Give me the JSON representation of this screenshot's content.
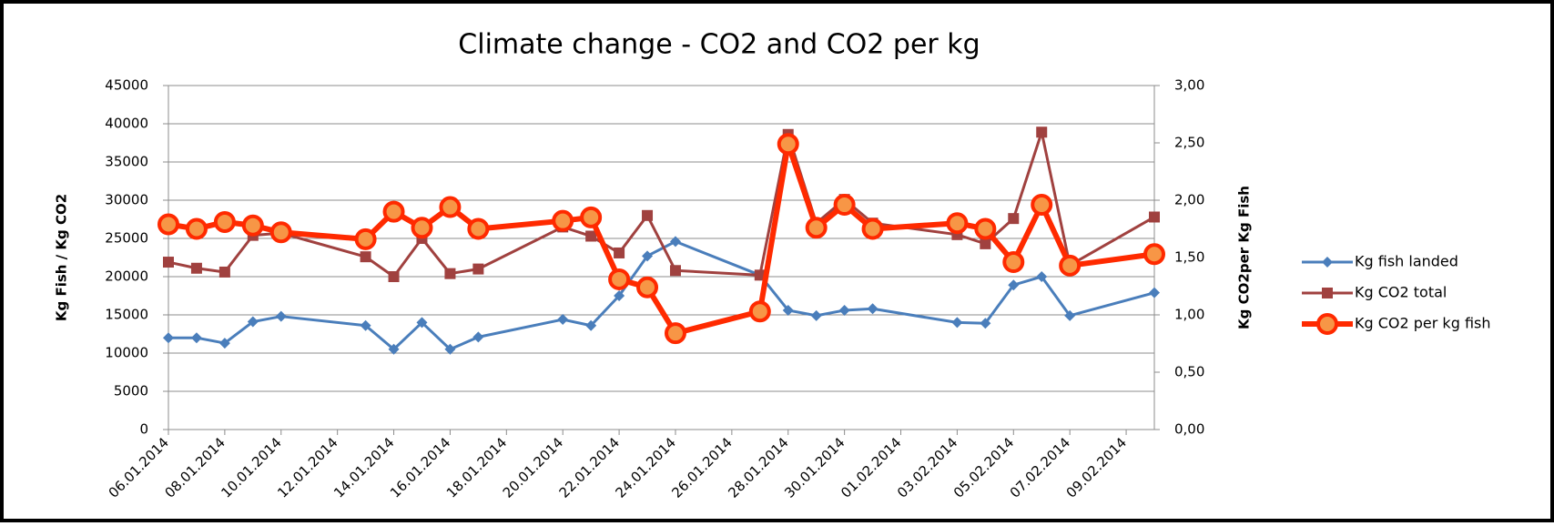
{
  "chart_data": {
    "type": "line",
    "title": "Climate change - CO2 and CO2 per kg",
    "y_label": "Kg Fish / Kg CO2",
    "y2_label": "Kg CO2per Kg Fish",
    "x": [
      "06.01.2014",
      "07.01.2014",
      "08.01.2014",
      "09.01.2014",
      "10.01.2014",
      "13.01.2014",
      "14.01.2014",
      "15.01.2014",
      "16.01.2014",
      "17.01.2014",
      "20.01.2014",
      "21.01.2014",
      "22.01.2014",
      "23.01.2014",
      "24.01.2014",
      "27.01.2014",
      "28.01.2014",
      "29.01.2014",
      "30.01.2014",
      "31.01.2014",
      "03.02.2014",
      "04.02.2014",
      "05.02.2014",
      "06.02.2014",
      "07.02.2014",
      "10.02.2014"
    ],
    "xlim": [
      "06.01.2014",
      "10.02.2014"
    ],
    "xticks": [
      "06.01.2014",
      "08.01.2014",
      "10.01.2014",
      "12.01.2014",
      "14.01.2014",
      "16.01.2014",
      "18.01.2014",
      "20.01.2014",
      "22.01.2014",
      "24.01.2014",
      "26.01.2014",
      "28.01.2014",
      "30.01.2014",
      "01.02.2014",
      "03.02.2014",
      "05.02.2014",
      "07.02.2014",
      "09.02.2014"
    ],
    "ylim": [
      0,
      45000
    ],
    "yticks": [
      0,
      5000,
      10000,
      15000,
      20000,
      25000,
      30000,
      35000,
      40000,
      45000
    ],
    "y2lim": [
      0,
      3
    ],
    "y2ticks": [
      {
        "value": 0,
        "label": "0,00"
      },
      {
        "value": 0.5,
        "label": "0,50"
      },
      {
        "value": 1,
        "label": "1,00"
      },
      {
        "value": 1.5,
        "label": "1,50"
      },
      {
        "value": 2,
        "label": "2,00"
      },
      {
        "value": 2.5,
        "label": "2,50"
      },
      {
        "value": 3,
        "label": "3,00"
      }
    ],
    "grid": true,
    "legend": "right",
    "series": [
      {
        "name": "Kg fish landed",
        "color": "#4a7ebb",
        "marker": "diamond",
        "values": [
          12000,
          12000,
          11300,
          14100,
          14800,
          13600,
          10500,
          14000,
          10500,
          12100,
          14400,
          13600,
          17500,
          22700,
          24600,
          20200,
          15600,
          14900,
          15600,
          15800,
          14000,
          13900,
          18900,
          20000,
          14900,
          17900
        ]
      },
      {
        "name": "Kg CO2 total",
        "color": "#a0413f",
        "marker": "square",
        "values": [
          21900,
          21100,
          20600,
          25400,
          25700,
          22600,
          20000,
          25000,
          20400,
          21000,
          26500,
          25300,
          23100,
          28000,
          20800,
          20200,
          38600,
          27000,
          30100,
          27000,
          25500,
          24300,
          27600,
          38900,
          21500,
          27800
        ]
      },
      {
        "name": "Kg CO2 per kg fish",
        "color": "#ff2a00",
        "marker": "circle",
        "axis": "y2",
        "values": [
          1.79,
          1.75,
          1.81,
          1.78,
          1.72,
          1.66,
          1.9,
          1.76,
          1.94,
          1.75,
          1.82,
          1.85,
          1.31,
          1.24,
          0.84,
          1.03,
          2.49,
          1.76,
          1.96,
          1.75,
          1.8,
          1.75,
          1.46,
          1.96,
          1.43,
          1.53
        ]
      }
    ]
  }
}
